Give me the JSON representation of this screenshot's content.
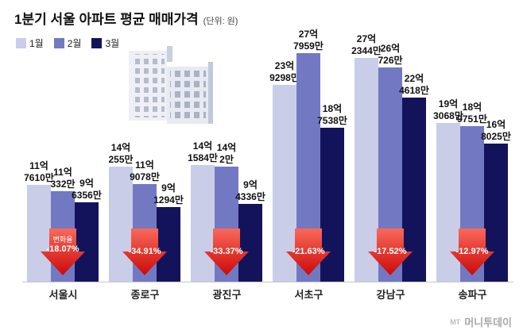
{
  "header": {
    "title": "1분기 서울 아파트 평균 매매가격",
    "unit": "(단위: 원)"
  },
  "legend": {
    "items": [
      {
        "label": "1월",
        "color": "#c9cde8"
      },
      {
        "label": "2월",
        "color": "#7279c2"
      },
      {
        "label": "3월",
        "color": "#13135c"
      }
    ]
  },
  "watermark": {
    "logo": "MT",
    "text": "머니투데이"
  },
  "colors": {
    "arrow_gradient_top": "#f9695a",
    "arrow_gradient_bottom": "#cd0909",
    "axis_line": "#c6c6c6"
  },
  "chart_data": {
    "type": "bar",
    "title": "1분기 서울 아파트 평균 매매가격",
    "unit_note": "단위: 원",
    "categories": [
      "서울시",
      "종로구",
      "광진구",
      "서초구",
      "강남구",
      "송파구"
    ],
    "series": [
      {
        "name": "1월",
        "color": "#c9cde8",
        "values_eok": [
          11.761,
          14.0255,
          14.1584,
          23.9298,
          27.2344,
          19.3068
        ],
        "labels": [
          [
            "11억",
            "7610만"
          ],
          [
            "14억",
            "255만"
          ],
          [
            "14억",
            "1584만"
          ],
          [
            "23억",
            "9298만"
          ],
          [
            "27억",
            "2344만"
          ],
          [
            "19억",
            "3068만"
          ]
        ]
      },
      {
        "name": "2월",
        "color": "#7279c2",
        "values_eok": [
          11.0332,
          11.9078,
          14.0002,
          27.7959,
          26.0726,
          18.9751
        ],
        "labels": [
          [
            "11억",
            "332만"
          ],
          [
            "11억",
            "9078만"
          ],
          [
            "14억",
            "2만"
          ],
          [
            "27억",
            "7959만"
          ],
          [
            "26억",
            "726만"
          ],
          [
            "18억",
            "9751만"
          ]
        ]
      },
      {
        "name": "3월",
        "color": "#13135c",
        "values_eok": [
          9.6356,
          9.1294,
          9.4336,
          18.7538,
          22.4618,
          16.8025
        ],
        "labels": [
          [
            "9억",
            "6356만"
          ],
          [
            "9억",
            "1294만"
          ],
          [
            "9억",
            "4336만"
          ],
          [
            "18억",
            "7538만"
          ],
          [
            "22억",
            "4618만"
          ],
          [
            "16억",
            "8025만"
          ]
        ]
      }
    ],
    "change_label": "변화율",
    "changes": [
      "-18.07%",
      "-34.91%",
      "-33.37%",
      "-21.63%",
      "-17.52%",
      "-12.97%"
    ],
    "ylim": [
      0,
      28
    ],
    "legend_position": "top-left",
    "grid": false
  }
}
